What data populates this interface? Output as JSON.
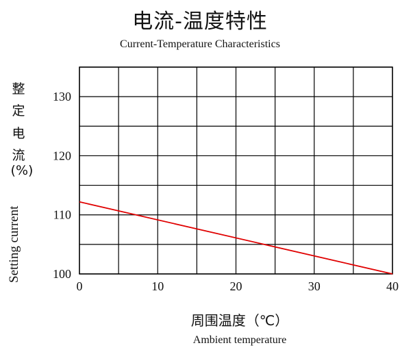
{
  "title": "电流-温度特性",
  "subtitle": "Current-Temperature Characteristics",
  "ylabel_cn": [
    "整",
    "定",
    "电",
    "流",
    "(%)"
  ],
  "ylabel_en": "Setting current",
  "xlabel_cn": "周围温度（℃）",
  "xlabel_en": "Ambient temperature",
  "chart_data": {
    "type": "line",
    "xlim": [
      0,
      40
    ],
    "ylim": [
      100,
      135
    ],
    "xticks": [
      0,
      10,
      20,
      30,
      40
    ],
    "yticks": [
      100,
      110,
      120,
      130
    ],
    "grid": true,
    "series": [
      {
        "x": [
          0,
          40
        ],
        "y": [
          112.2,
          100
        ],
        "color": "#e00000"
      }
    ]
  }
}
